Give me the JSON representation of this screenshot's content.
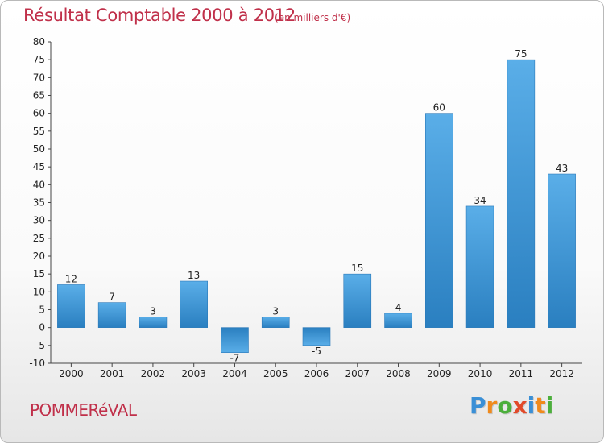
{
  "header": {
    "title": "Résultat Comptable 2000 à 2012",
    "subtitle": "(en milliers d'€)"
  },
  "footer": {
    "commune": "POMMERéVAL",
    "logo_text": "Proxiti",
    "logo_letters": [
      {
        "ch": "P",
        "color": "#3a8fd6"
      },
      {
        "ch": "r",
        "color": "#f08a1c"
      },
      {
        "ch": "o",
        "color": "#4caf3c"
      },
      {
        "ch": "x",
        "color": "#e24a2a"
      },
      {
        "ch": "i",
        "color": "#3a8fd6"
      },
      {
        "ch": "t",
        "color": "#f08a1c"
      },
      {
        "ch": "i",
        "color": "#4caf3c"
      }
    ]
  },
  "colors": {
    "title": "#c0304a",
    "bar_top": "#5aaee8",
    "bar_bottom": "#2a7fc0",
    "axis": "#444444"
  },
  "chart_data": {
    "type": "bar",
    "title": "Résultat Comptable 2000 à 2012",
    "subtitle": "(en milliers d'€)",
    "categories": [
      "2000",
      "2001",
      "2002",
      "2003",
      "2004",
      "2005",
      "2006",
      "2007",
      "2008",
      "2009",
      "2010",
      "2011",
      "2012"
    ],
    "values": [
      12,
      7,
      3,
      13,
      -7,
      3,
      -5,
      15,
      4,
      60,
      34,
      75,
      43
    ],
    "data_labels": [
      "12",
      "7",
      "3",
      "13",
      "-7",
      "3",
      "-5",
      "15",
      "4",
      "60",
      "34",
      "75",
      "43"
    ],
    "ylim": [
      -10,
      80
    ],
    "yticks": [
      -10,
      -5,
      0,
      5,
      10,
      15,
      20,
      25,
      30,
      35,
      40,
      45,
      50,
      55,
      60,
      65,
      70,
      75,
      80
    ],
    "xlabel": "",
    "ylabel": "",
    "grid": false,
    "legend": "none"
  }
}
